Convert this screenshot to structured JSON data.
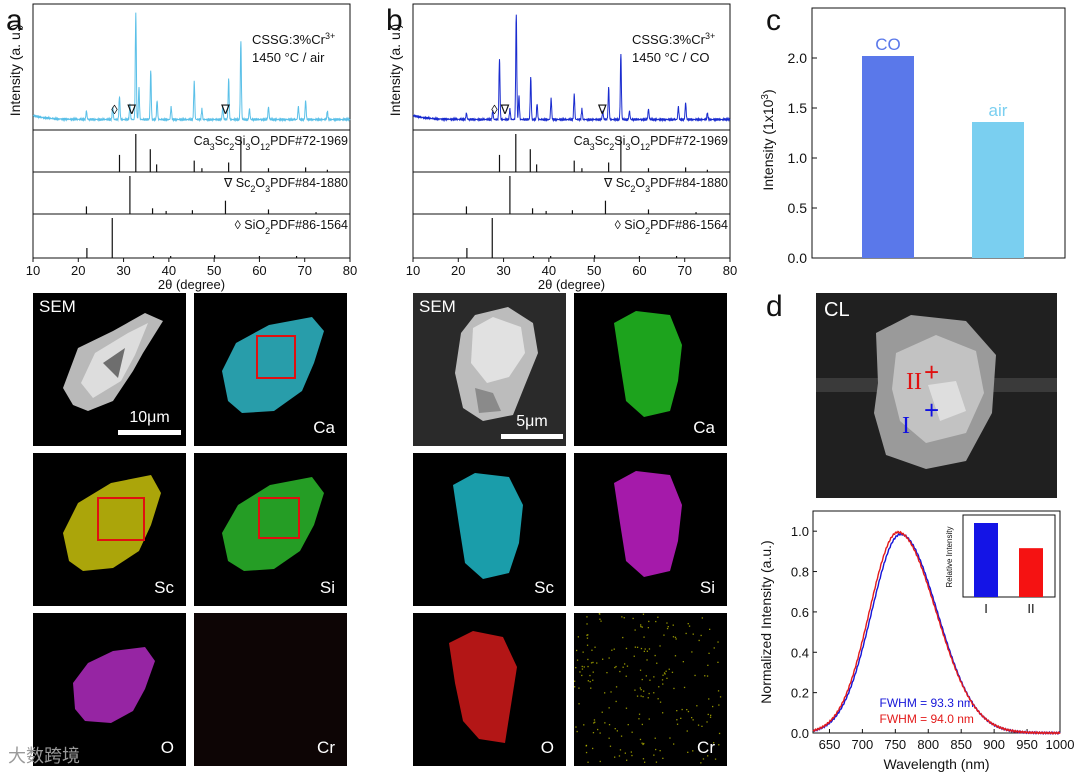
{
  "panel_letters": {
    "a": "a",
    "b": "b",
    "c": "c",
    "d": "d"
  },
  "watermark": {
    "text": "大数跨境"
  },
  "chart_data": [
    {
      "id": "xrd_air",
      "type": "line",
      "title": "CSSG:3%Cr",
      "title_sup": "3+",
      "subtitle": "1450 °C / air",
      "xlabel": "2θ (degree)",
      "ylabel": "Intensity (a. u.)",
      "xlim": [
        10,
        80
      ],
      "xticks": [
        "10",
        "20",
        "30",
        "40",
        "50",
        "60",
        "70",
        "80"
      ],
      "color": "#5bc0e8",
      "peaks": [
        {
          "x": 21.8,
          "h": 0.08
        },
        {
          "x": 27.6,
          "h": 0.12
        },
        {
          "x": 29.1,
          "h": 0.22
        },
        {
          "x": 31.4,
          "h": 0.14
        },
        {
          "x": 32.7,
          "h": 1.0
        },
        {
          "x": 33.4,
          "h": 0.3
        },
        {
          "x": 36.0,
          "h": 0.46
        },
        {
          "x": 37.4,
          "h": 0.18
        },
        {
          "x": 40.5,
          "h": 0.12
        },
        {
          "x": 45.6,
          "h": 0.36
        },
        {
          "x": 47.3,
          "h": 0.1
        },
        {
          "x": 51.9,
          "h": 0.12
        },
        {
          "x": 53.2,
          "h": 0.38
        },
        {
          "x": 55.9,
          "h": 0.74
        },
        {
          "x": 57.8,
          "h": 0.1
        },
        {
          "x": 62.0,
          "h": 0.12
        },
        {
          "x": 68.6,
          "h": 0.12
        },
        {
          "x": 70.2,
          "h": 0.18
        },
        {
          "x": 75.0,
          "h": 0.08
        }
      ],
      "markers": [
        {
          "x": 28.0,
          "symbol": "◊"
        },
        {
          "x": 31.8,
          "symbol": "∇"
        },
        {
          "x": 52.5,
          "symbol": "∇"
        }
      ],
      "references": [
        {
          "label": "Ca3Sc2Si3O12 PDF#72-1969",
          "lines": [
            {
              "x": 29.1,
              "h": 0.45
            },
            {
              "x": 32.7,
              "h": 1.0
            },
            {
              "x": 35.9,
              "h": 0.6
            },
            {
              "x": 37.3,
              "h": 0.2
            },
            {
              "x": 45.6,
              "h": 0.3
            },
            {
              "x": 47.3,
              "h": 0.1
            },
            {
              "x": 53.2,
              "h": 0.25
            },
            {
              "x": 55.9,
              "h": 0.9
            },
            {
              "x": 62.0,
              "h": 0.1
            },
            {
              "x": 70.2,
              "h": 0.12
            },
            {
              "x": 75.0,
              "h": 0.06
            }
          ]
        },
        {
          "label": "∇ Sc2O3 PDF#84-1880",
          "lines": [
            {
              "x": 21.8,
              "h": 0.2
            },
            {
              "x": 31.4,
              "h": 1.0
            },
            {
              "x": 36.4,
              "h": 0.15
            },
            {
              "x": 39.4,
              "h": 0.08
            },
            {
              "x": 45.2,
              "h": 0.1
            },
            {
              "x": 52.5,
              "h": 0.35
            },
            {
              "x": 62.0,
              "h": 0.12
            },
            {
              "x": 72.5,
              "h": 0.05
            }
          ]
        },
        {
          "label": "◊ SiO2 PDF#86-1564",
          "lines": [
            {
              "x": 21.9,
              "h": 0.25
            },
            {
              "x": 27.5,
              "h": 1.0
            },
            {
              "x": 36.6,
              "h": 0.05
            },
            {
              "x": 40.4,
              "h": 0.05
            },
            {
              "x": 50.1,
              "h": 0.07
            },
            {
              "x": 60.0,
              "h": 0.05
            },
            {
              "x": 68.2,
              "h": 0.05
            }
          ]
        }
      ]
    },
    {
      "id": "xrd_co",
      "type": "line",
      "title": "CSSG:3%Cr",
      "title_sup": "3+",
      "subtitle": "1450 °C / CO",
      "xlabel": "2θ (degree)",
      "ylabel": "Intensity (a. u.)",
      "xlim": [
        10,
        80
      ],
      "xticks": [
        "10",
        "20",
        "30",
        "40",
        "50",
        "60",
        "70",
        "80"
      ],
      "color": "#1a2ccf",
      "peaks": [
        {
          "x": 21.8,
          "h": 0.06
        },
        {
          "x": 27.6,
          "h": 0.08
        },
        {
          "x": 29.1,
          "h": 0.58
        },
        {
          "x": 31.4,
          "h": 0.1
        },
        {
          "x": 32.8,
          "h": 1.0
        },
        {
          "x": 33.4,
          "h": 0.22
        },
        {
          "x": 36.0,
          "h": 0.4
        },
        {
          "x": 37.4,
          "h": 0.15
        },
        {
          "x": 40.5,
          "h": 0.2
        },
        {
          "x": 45.6,
          "h": 0.24
        },
        {
          "x": 47.3,
          "h": 0.1
        },
        {
          "x": 51.9,
          "h": 0.08
        },
        {
          "x": 53.2,
          "h": 0.3
        },
        {
          "x": 55.9,
          "h": 0.62
        },
        {
          "x": 57.8,
          "h": 0.08
        },
        {
          "x": 62.0,
          "h": 0.1
        },
        {
          "x": 68.6,
          "h": 0.12
        },
        {
          "x": 70.2,
          "h": 0.16
        },
        {
          "x": 75.0,
          "h": 0.06
        }
      ],
      "markers": [
        {
          "x": 28.0,
          "symbol": "◊"
        },
        {
          "x": 30.3,
          "symbol": "∇"
        },
        {
          "x": 51.8,
          "symbol": "∇"
        }
      ],
      "references": [
        {
          "label": "Ca3Sc2Si3O12 PDF#72-1969",
          "lines": [
            {
              "x": 29.1,
              "h": 0.45
            },
            {
              "x": 32.7,
              "h": 1.0
            },
            {
              "x": 35.9,
              "h": 0.6
            },
            {
              "x": 37.3,
              "h": 0.2
            },
            {
              "x": 45.6,
              "h": 0.3
            },
            {
              "x": 47.3,
              "h": 0.1
            },
            {
              "x": 53.2,
              "h": 0.25
            },
            {
              "x": 55.9,
              "h": 0.9
            },
            {
              "x": 62.0,
              "h": 0.1
            },
            {
              "x": 70.2,
              "h": 0.12
            },
            {
              "x": 75.0,
              "h": 0.06
            }
          ]
        },
        {
          "label": "∇ Sc2O3 PDF#84-1880",
          "lines": [
            {
              "x": 21.8,
              "h": 0.2
            },
            {
              "x": 31.4,
              "h": 1.0
            },
            {
              "x": 36.4,
              "h": 0.15
            },
            {
              "x": 39.4,
              "h": 0.08
            },
            {
              "x": 45.2,
              "h": 0.1
            },
            {
              "x": 52.5,
              "h": 0.35
            },
            {
              "x": 62.0,
              "h": 0.12
            },
            {
              "x": 72.5,
              "h": 0.05
            }
          ]
        },
        {
          "label": "◊ SiO2 PDF#86-1564",
          "lines": [
            {
              "x": 21.9,
              "h": 0.25
            },
            {
              "x": 27.5,
              "h": 1.0
            },
            {
              "x": 36.6,
              "h": 0.05
            },
            {
              "x": 40.4,
              "h": 0.05
            },
            {
              "x": 50.1,
              "h": 0.07
            },
            {
              "x": 60.0,
              "h": 0.05
            },
            {
              "x": 68.2,
              "h": 0.05
            }
          ]
        }
      ]
    },
    {
      "id": "intensity_bar",
      "type": "bar",
      "categories": [
        "CO",
        "air"
      ],
      "values": [
        2.02,
        1.36
      ],
      "colors": [
        "#5a78ea",
        "#7acff0"
      ],
      "ylabel": "Intensity (1x10",
      "ylabel_sup": "3",
      "ylabel_end": ")",
      "ylim": [
        0,
        2.5
      ],
      "yticks": [
        "0.0",
        "0.5",
        "1.0",
        "1.5",
        "2.0"
      ]
    },
    {
      "id": "cl_spectra",
      "type": "line",
      "xlabel": "Wavelength (nm)",
      "ylabel": "Normalized Intensity (a.u.)",
      "xlim": [
        625,
        1000
      ],
      "ylim": [
        0,
        1.1
      ],
      "xticks": [
        "650",
        "700",
        "750",
        "800",
        "850",
        "900",
        "950",
        "1000"
      ],
      "yticks": [
        "0.0",
        "0.2",
        "0.4",
        "0.6",
        "0.8",
        "1.0"
      ],
      "series": [
        {
          "name": "I",
          "color": "#1515d8",
          "peak": 758,
          "left_width": 52,
          "right_width": 66,
          "max": 0.985,
          "fwhm_label": "FWHM = 93.3 nm"
        },
        {
          "name": "II",
          "color": "#e31a1a",
          "peak": 754,
          "left_width": 51,
          "right_width": 68,
          "max": 0.995,
          "fwhm_label": "FWHM = 94.0 nm"
        }
      ],
      "inset": {
        "ylabel": "Relative Intensity",
        "categories": [
          "I",
          "II"
        ],
        "values": [
          1.0,
          0.66
        ],
        "colors": [
          "#1414e6",
          "#f51212"
        ]
      }
    }
  ],
  "sem_a": {
    "scale_label": "10μm",
    "tiles": [
      {
        "label": "SEM",
        "kind": "sem"
      },
      {
        "label": "Ca",
        "kind": "map",
        "color": "#2fb9c8"
      },
      {
        "label": "Sc",
        "kind": "map",
        "color": "#c9c20c"
      },
      {
        "label": "Si",
        "kind": "map",
        "color": "#2bb82b"
      },
      {
        "label": "O",
        "kind": "map",
        "color": "#b02bc0"
      },
      {
        "label": "Cr",
        "kind": "map",
        "color": "#3a0a0a"
      }
    ]
  },
  "sem_b": {
    "scale_label": "5μm",
    "tiles": [
      {
        "label": "SEM",
        "kind": "sem"
      },
      {
        "label": "Ca",
        "kind": "map",
        "color": "#22c022"
      },
      {
        "label": "Sc",
        "kind": "map",
        "color": "#1fb8c8"
      },
      {
        "label": "Si",
        "kind": "map",
        "color": "#c21ec8"
      },
      {
        "label": "O",
        "kind": "map",
        "color": "#d21a1a"
      },
      {
        "label": "Cr",
        "kind": "map",
        "color": "#b9b900"
      }
    ]
  },
  "cl_image": {
    "title": "CL",
    "region_labels": [
      "II",
      "I"
    ],
    "region_colors": [
      "#e01010",
      "#1010e0"
    ]
  }
}
